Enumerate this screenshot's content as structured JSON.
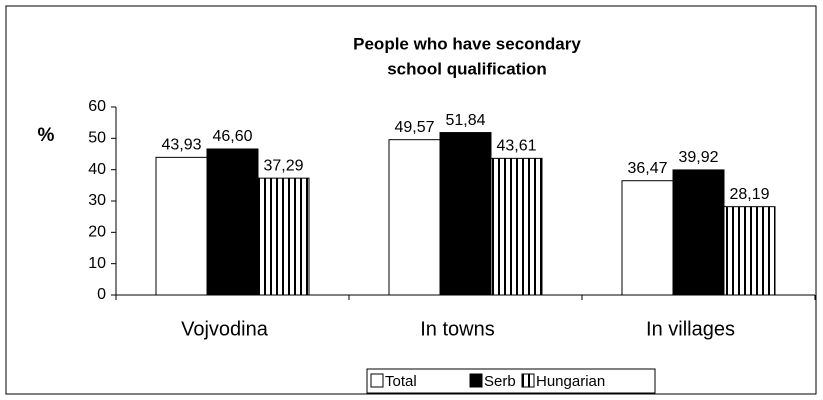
{
  "chart_data": {
    "type": "bar",
    "title": [
      "People who have secondary",
      "school qualification"
    ],
    "y_label": "%",
    "categories": [
      "Vojvodina",
      "In towns",
      "In villages"
    ],
    "series": [
      {
        "name": "Total",
        "color": "#ffffff",
        "values": [
          43.93,
          49.57,
          36.47
        ],
        "value_labels": [
          "43,93",
          "49,57",
          "36,47"
        ]
      },
      {
        "name": "Serb",
        "color": "#000000",
        "values": [
          46.6,
          51.84,
          39.92
        ],
        "value_labels": [
          "46,60",
          "51,84",
          "39,92"
        ]
      },
      {
        "name": "Hungarian",
        "color": "#000000",
        "pattern": "vertical-stripes",
        "values": [
          37.29,
          43.61,
          28.19
        ],
        "value_labels": [
          "37,29",
          "43,61",
          "28,19"
        ]
      }
    ],
    "ylim": [
      0,
      60
    ],
    "yticks": [
      0,
      10,
      20,
      30,
      40,
      50,
      60
    ],
    "grid": false,
    "legend": "bottom"
  }
}
